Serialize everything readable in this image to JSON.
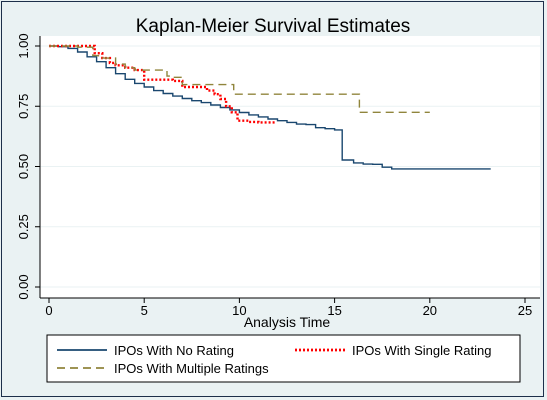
{
  "chart_data": {
    "type": "line",
    "title": "Kaplan-Meier Survival Estimates",
    "xlabel": "Analysis Time",
    "ylabel": "",
    "xlim": [
      0,
      25
    ],
    "ylim": [
      0,
      1
    ],
    "xticks": [
      "0",
      "5",
      "10",
      "15",
      "20",
      "25"
    ],
    "yticks": [
      "0.00",
      "0.25",
      "0.50",
      "0.75",
      "1.00"
    ],
    "grid": "horizontal",
    "legend_position": "bottom",
    "series": [
      {
        "name": "IPOs With No Rating",
        "color": "#1a476f",
        "style": "solid",
        "points": [
          [
            0,
            1.0
          ],
          [
            0.5,
            0.997
          ],
          [
            1,
            0.99
          ],
          [
            1.5,
            0.975
          ],
          [
            2,
            0.955
          ],
          [
            2.5,
            0.935
          ],
          [
            3,
            0.91
          ],
          [
            3.5,
            0.885
          ],
          [
            4,
            0.862
          ],
          [
            4.5,
            0.845
          ],
          [
            5,
            0.83
          ],
          [
            5.5,
            0.815
          ],
          [
            6,
            0.803
          ],
          [
            6.5,
            0.792
          ],
          [
            7,
            0.782
          ],
          [
            7.5,
            0.773
          ],
          [
            8,
            0.765
          ],
          [
            8.5,
            0.755
          ],
          [
            9,
            0.745
          ],
          [
            9.5,
            0.735
          ],
          [
            10,
            0.724
          ],
          [
            10.5,
            0.714
          ],
          [
            11,
            0.706
          ],
          [
            11.5,
            0.697
          ],
          [
            12,
            0.69
          ],
          [
            12.5,
            0.683
          ],
          [
            13,
            0.676
          ],
          [
            13.5,
            0.674
          ],
          [
            14,
            0.661
          ],
          [
            14.5,
            0.657
          ],
          [
            15,
            0.652
          ],
          [
            15.4,
            0.645
          ],
          [
            15.4,
            0.527
          ],
          [
            16,
            0.515
          ],
          [
            16.5,
            0.51
          ],
          [
            17,
            0.509
          ],
          [
            17.5,
            0.497
          ],
          [
            18,
            0.49
          ],
          [
            19,
            0.49
          ],
          [
            20,
            0.49
          ],
          [
            21,
            0.49
          ],
          [
            22,
            0.49
          ],
          [
            23.2,
            0.49
          ]
        ]
      },
      {
        "name": "IPOs With Single Rating",
        "color": "#ff0000",
        "style": "dotted",
        "points": [
          [
            0,
            1.0
          ],
          [
            2.2,
            1.0
          ],
          [
            2.4,
            0.97
          ],
          [
            2.8,
            0.95
          ],
          [
            3.2,
            0.93
          ],
          [
            3.5,
            0.92
          ],
          [
            4,
            0.91
          ],
          [
            4.5,
            0.9
          ],
          [
            5,
            0.86
          ],
          [
            5.5,
            0.86
          ],
          [
            6,
            0.86
          ],
          [
            6.5,
            0.855
          ],
          [
            7,
            0.83
          ],
          [
            7.5,
            0.83
          ],
          [
            8,
            0.83
          ],
          [
            8.3,
            0.815
          ],
          [
            8.7,
            0.8
          ],
          [
            9,
            0.78
          ],
          [
            9.3,
            0.75
          ],
          [
            9.6,
            0.725
          ],
          [
            9.9,
            0.69
          ],
          [
            10.5,
            0.685
          ],
          [
            11,
            0.683
          ],
          [
            11.5,
            0.683
          ],
          [
            11.9,
            0.683
          ]
        ]
      },
      {
        "name": "IPOs With Multiple Ratings",
        "color": "#90853c",
        "style": "dashed",
        "points": [
          [
            0,
            1.0
          ],
          [
            1.5,
            0.995
          ],
          [
            2.3,
            0.96
          ],
          [
            2.6,
            0.95
          ],
          [
            3.5,
            0.925
          ],
          [
            4,
            0.91
          ],
          [
            4.5,
            0.9
          ],
          [
            5,
            0.9
          ],
          [
            6,
            0.9
          ],
          [
            6.2,
            0.875
          ],
          [
            6.5,
            0.87
          ],
          [
            7,
            0.84
          ],
          [
            8,
            0.84
          ],
          [
            9,
            0.84
          ],
          [
            9.6,
            0.84
          ],
          [
            9.7,
            0.8
          ],
          [
            10,
            0.8
          ],
          [
            12,
            0.8
          ],
          [
            14,
            0.8
          ],
          [
            16.3,
            0.8
          ],
          [
            16.3,
            0.725
          ],
          [
            18,
            0.725
          ],
          [
            20,
            0.725
          ]
        ]
      }
    ]
  }
}
